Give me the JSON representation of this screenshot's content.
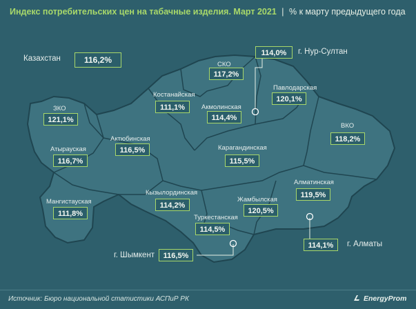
{
  "title": {
    "main": "Индекс потребительских цен на табачные изделия. Март 2021",
    "separator": "|",
    "subtitle": "% к марту предыдущего года"
  },
  "country": {
    "label": "Казахстан",
    "value": "116,2%"
  },
  "regions": {
    "sko": {
      "label": "СКО",
      "value": "117,2%"
    },
    "kostanay": {
      "label": "Костанайская",
      "value": "111,1%"
    },
    "pavlodar": {
      "label": "Павлодарская",
      "value": "120,1%"
    },
    "akmola": {
      "label": "Акмолинская",
      "value": "114,4%"
    },
    "zko": {
      "label": "ЗКО",
      "value": "121,1%"
    },
    "vko": {
      "label": "ВКО",
      "value": "118,2%"
    },
    "aktobe": {
      "label": "Актюбинская",
      "value": "116,5%"
    },
    "atyrau": {
      "label": "Атырауская",
      "value": "116,7%"
    },
    "karaganda": {
      "label": "Карагандинская",
      "value": "115,5%"
    },
    "almaty_reg": {
      "label": "Алматинская",
      "value": "119,5%"
    },
    "kyzylorda": {
      "label": "Кызылординская",
      "value": "114,2%"
    },
    "mangystau": {
      "label": "Мангистауская",
      "value": "111,8%"
    },
    "zhambyl": {
      "label": "Жамбылская",
      "value": "120,5%"
    },
    "turkestan": {
      "label": "Туркестанская",
      "value": "114,5%"
    }
  },
  "cities": {
    "nur_sultan": {
      "label": "г. Нур-Султан",
      "value": "114,0%"
    },
    "shymkent": {
      "label": "г. Шымкент",
      "value": "116,5%"
    },
    "almaty": {
      "label": "г. Алматы",
      "value": "114,1%"
    }
  },
  "footer": {
    "source": "Источник: Бюро национальной статистики АСПиР РК",
    "logo": "EnergyProm"
  },
  "colors": {
    "background": "#2e5f6c",
    "land": "#3e7380",
    "border": "#1f4550",
    "accent": "#a9d86a"
  }
}
